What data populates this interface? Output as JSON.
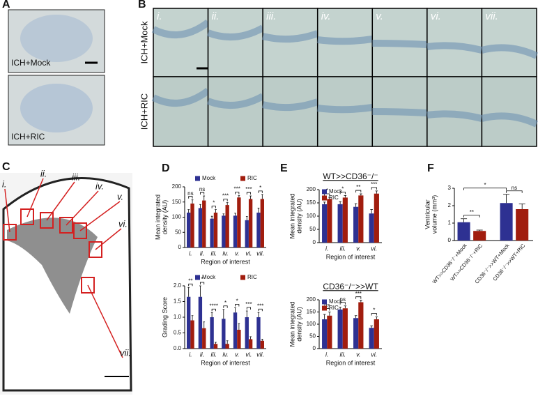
{
  "panels": {
    "labels": [
      "A",
      "B",
      "C",
      "D",
      "E",
      "F"
    ]
  },
  "panel_a": {
    "labels": [
      "ICH+Mock",
      "ICH+RIC"
    ]
  },
  "panel_b": {
    "rows": [
      "ICH+Mock",
      "ICH+RIC"
    ],
    "columns": [
      "i.",
      "ii.",
      "iii.",
      "iv.",
      "v.",
      "vi.",
      "vii."
    ]
  },
  "panel_c": {
    "regions": [
      "i.",
      "ii.",
      "iii.",
      "iv.",
      "v.",
      "vi.",
      "vii."
    ]
  },
  "chart_data": [
    {
      "type": "bar",
      "ylabel": [
        "Mean integrated",
        "density (AU)"
      ],
      "xlabel": "Region of interest",
      "categories": [
        "i.",
        "ii.",
        "iii.",
        "iv.",
        "v.",
        "vi.",
        "vii."
      ],
      "series": [
        {
          "name": "Mock",
          "color": "#2e3192",
          "values": [
            115,
            130,
            95,
            105,
            105,
            90,
            115
          ],
          "errors": [
            10,
            12,
            8,
            6,
            8,
            12,
            15
          ]
        },
        {
          "name": "RIC",
          "color": "#a11d0e",
          "values": [
            145,
            155,
            115,
            140,
            165,
            160,
            160
          ],
          "errors": [
            12,
            15,
            10,
            8,
            6,
            10,
            15
          ]
        }
      ],
      "annotations": [
        "ns",
        "ns",
        "*",
        "***",
        "***",
        "***",
        "*"
      ],
      "ylim": [
        0,
        200
      ],
      "yticks": [
        0,
        50,
        100,
        150,
        200
      ],
      "legend": "top"
    },
    {
      "type": "bar",
      "ylabel": [
        "Grading Score"
      ],
      "xlabel": "Region of interest",
      "categories": [
        "i.",
        "ii.",
        "iii.",
        "iv.",
        "v.",
        "vi.",
        "vii."
      ],
      "series": [
        {
          "name": "Mock",
          "color": "#2e3192",
          "values": [
            1.65,
            1.65,
            1.0,
            0.95,
            1.15,
            1.0,
            1.0
          ],
          "errors": [
            0.3,
            0.35,
            0.15,
            0.3,
            0.15,
            0.2,
            0.15
          ]
        },
        {
          "name": "RIC",
          "color": "#a11d0e",
          "values": [
            0.9,
            0.65,
            0.15,
            0.15,
            0.6,
            0.3,
            0.25
          ],
          "errors": [
            0.15,
            0.2,
            0.05,
            0.1,
            0.2,
            0.08,
            0.05
          ]
        }
      ],
      "annotations": [
        "**",
        "*",
        "****",
        "*",
        "*",
        "***",
        "***"
      ],
      "ylim": [
        0,
        2
      ],
      "yticks": [
        {
          "value": 0,
          "label": "0.0"
        },
        0.5,
        {
          "value": 1,
          "label": "1.0"
        },
        1.5,
        {
          "value": 2,
          "label": "2.0"
        }
      ],
      "legend": "top"
    },
    {
      "type": "bar",
      "title": "WT>>CD36⁻/⁻",
      "ylabel": [
        "Mean integrated",
        "density (AU)"
      ],
      "xlabel": "Region of interest",
      "categories": [
        "i.",
        "iii.",
        "v.",
        "vi."
      ],
      "series": [
        {
          "name": "Mock",
          "color": "#2e3192",
          "values": [
            145,
            145,
            135,
            110
          ],
          "errors": [
            8,
            10,
            12,
            15
          ]
        },
        {
          "name": "RIC",
          "color": "#a11d0e",
          "values": [
            165,
            170,
            178,
            185
          ],
          "errors": [
            6,
            8,
            6,
            10
          ]
        }
      ],
      "annotations": [
        "*",
        "*",
        "**",
        "***"
      ],
      "ylim": [
        0,
        200
      ],
      "yticks": [
        0,
        50,
        100,
        150,
        200
      ],
      "legend": "top-left"
    },
    {
      "type": "bar",
      "title": "CD36⁻/⁻>>WT",
      "ylabel": [
        "Mean integrated",
        "density (AU)"
      ],
      "xlabel": "Region of interest",
      "categories": [
        "i.",
        "iii.",
        "v.",
        "vi."
      ],
      "series": [
        {
          "name": "Mock",
          "color": "#2e3192",
          "values": [
            120,
            160,
            125,
            85
          ],
          "errors": [
            20,
            10,
            10,
            8
          ]
        },
        {
          "name": "RIC",
          "color": "#a11d0e",
          "values": [
            135,
            165,
            190,
            120
          ],
          "errors": [
            15,
            10,
            8,
            10
          ]
        }
      ],
      "annotations": [
        "ns",
        "ns",
        "***",
        "*"
      ],
      "ylim": [
        0,
        200
      ],
      "yticks": [
        0,
        50,
        100,
        150,
        200
      ],
      "legend": "top-left"
    },
    {
      "type": "bar",
      "ylabel": [
        "Ventricular",
        "volume (mm³)"
      ],
      "categories": [
        "WT>>CD36⁻/⁻+Mock",
        "WT>>CD36⁻/⁻+RIC",
        "CD36⁻/⁻>>WT+Mock",
        "CD36⁻/⁻>>WT+RIC"
      ],
      "values": [
        1.05,
        0.55,
        2.15,
        1.8
      ],
      "errors": [
        0.2,
        0.05,
        0.5,
        0.3
      ],
      "colors": [
        "#2e3192",
        "#a11d0e",
        "#2e3192",
        "#a11d0e"
      ],
      "annotations": [
        "**",
        "ns",
        "*"
      ],
      "ylim": [
        0,
        3
      ],
      "yticks": [
        0,
        1,
        2,
        3
      ]
    }
  ]
}
